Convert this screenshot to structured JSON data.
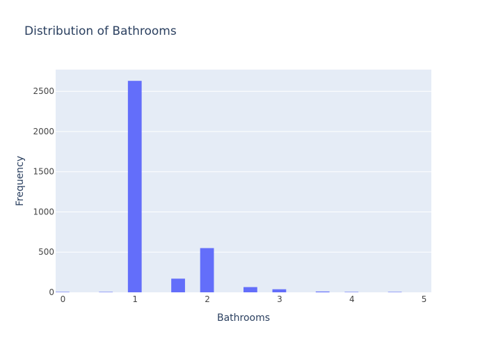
{
  "chart_data": {
    "type": "bar",
    "title": "Distribution of Bathrooms",
    "xlabel": "Bathrooms",
    "ylabel": "Frequency",
    "xlim": [
      -0.1,
      5.1
    ],
    "ylim": [
      0,
      2770
    ],
    "x_ticks": [
      0,
      1,
      2,
      3,
      4,
      5
    ],
    "y_ticks": [
      0,
      500,
      1000,
      1500,
      2000,
      2500
    ],
    "bin_width": 0.2,
    "bins": [
      {
        "x0": -0.1,
        "x1": 0.1,
        "value": 5
      },
      {
        "x0": 0.5,
        "x1": 0.7,
        "value": 5
      },
      {
        "x0": 0.9,
        "x1": 1.1,
        "value": 2630
      },
      {
        "x0": 1.5,
        "x1": 1.7,
        "value": 170
      },
      {
        "x0": 1.9,
        "x1": 2.1,
        "value": 550
      },
      {
        "x0": 2.5,
        "x1": 2.7,
        "value": 65
      },
      {
        "x0": 2.9,
        "x1": 3.1,
        "value": 38
      },
      {
        "x0": 3.5,
        "x1": 3.7,
        "value": 10
      },
      {
        "x0": 3.9,
        "x1": 4.1,
        "value": 5
      },
      {
        "x0": 4.5,
        "x1": 4.7,
        "value": 5
      }
    ],
    "bar_color": "#636efa",
    "plot_bg": "#e5ecf6",
    "grid": true
  }
}
